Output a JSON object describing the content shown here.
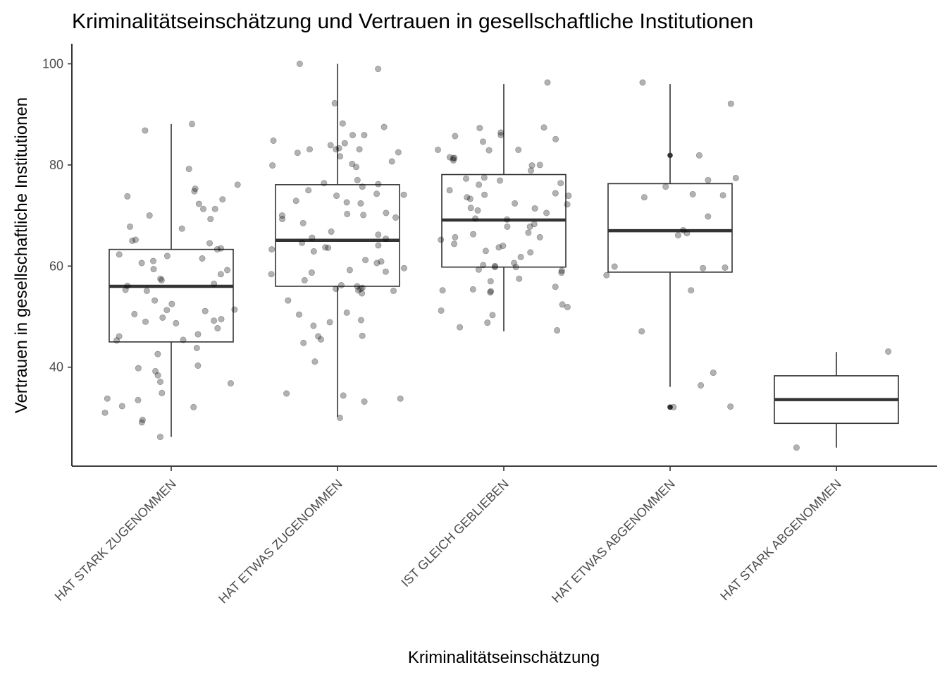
{
  "chart_data": {
    "type": "boxplot",
    "title": "Kriminalitätseinschätzung und Vertrauen in gesellschaftliche Institutionen",
    "xlabel": "Kriminalitätseinschätzung",
    "ylabel": "Vertrauen in gesellschaftliche Institutionen",
    "ylim": [
      21,
      104
    ],
    "y_ticks": [
      40,
      60,
      80,
      100
    ],
    "grid": false,
    "categories": [
      "HAT STARK ZUGENOMMEN",
      "HAT ETWAS ZUGENOMMEN",
      "IST GLEICH GEBLIEBEN",
      "HAT ETWAS ABGENOMMEN",
      "HAT STARK ABGENOMMEN"
    ],
    "boxes": [
      {
        "category": "HAT STARK ZUGENOMMEN",
        "whisker_low": 26.2,
        "q1": 45.0,
        "median": 56.0,
        "q3": 63.3,
        "whisker_high": 88.1,
        "outliers": []
      },
      {
        "category": "HAT ETWAS ZUGENOMMEN",
        "whisker_low": 30.2,
        "q1": 56.0,
        "median": 65.1,
        "q3": 76.1,
        "whisker_high": 100.0,
        "outliers": []
      },
      {
        "category": "IST GLEICH GEBLIEBEN",
        "whisker_low": 47.1,
        "q1": 59.8,
        "median": 69.1,
        "q3": 78.1,
        "whisker_high": 96.0,
        "outliers": []
      },
      {
        "category": "HAT ETWAS ABGENOMMEN",
        "whisker_low": 36.1,
        "q1": 58.8,
        "median": 67.0,
        "q3": 76.3,
        "whisker_high": 96.0,
        "outliers": [
          32.1,
          81.9
        ]
      },
      {
        "category": "HAT STARK ABGENOMMEN",
        "whisker_low": 24.1,
        "q1": 28.9,
        "median": 33.6,
        "q3": 38.3,
        "whisker_high": 43.0,
        "outliers": []
      }
    ],
    "jitter_points": [
      {
        "category": "HAT STARK ZUGENOMMEN",
        "values": [
          88.1,
          86.8,
          79.2,
          76.1,
          75.3,
          74.8,
          73.8,
          73.2,
          72.3,
          71.3,
          71.3,
          70.0,
          69.3,
          67.8,
          67.4,
          65.2,
          65.0,
          64.5,
          63.5,
          63.3,
          62.3,
          62.0,
          61.5,
          61.0,
          60.6,
          59.4,
          59.2,
          58.4,
          57.5,
          57.2,
          56.5,
          56.1,
          55.3,
          55.1,
          53.2,
          52.5,
          51.4,
          51.3,
          51.1,
          50.5,
          49.8,
          49.5,
          49.2,
          49.0,
          48.7,
          47.7,
          46.5,
          46.1,
          45.4,
          45.3,
          43.8,
          42.6,
          40.3,
          39.8,
          39.2,
          38.4,
          37.1,
          36.8,
          34.9,
          33.8,
          33.5,
          32.3,
          32.1,
          31.0,
          29.6,
          29.1,
          26.2
        ]
      },
      {
        "category": "HAT ETWAS ZUGENOMMEN",
        "values": [
          100.0,
          99.0,
          92.2,
          88.2,
          87.5,
          85.9,
          85.9,
          84.8,
          84.3,
          83.9,
          83.3,
          83.1,
          83.1,
          83.1,
          82.5,
          82.4,
          81.7,
          80.7,
          80.2,
          79.9,
          79.6,
          77.0,
          76.4,
          76.2,
          75.7,
          75.0,
          74.3,
          74.1,
          73.9,
          72.9,
          72.6,
          72.4,
          70.5,
          70.3,
          70.1,
          70.0,
          69.6,
          69.3,
          68.5,
          66.8,
          66.2,
          65.6,
          65.4,
          64.6,
          64.1,
          63.7,
          63.6,
          63.3,
          62.9,
          61.2,
          60.9,
          60.6,
          59.6,
          59.2,
          58.9,
          58.7,
          58.4,
          57.2,
          56.2,
          56.0,
          55.7,
          55.5,
          55.5,
          55.2,
          55.1,
          54.6,
          53.2,
          50.8,
          50.4,
          49.3,
          48.9,
          48.2,
          46.2,
          46.1,
          45.5,
          44.8,
          41.1,
          34.8,
          34.4,
          33.8,
          33.2,
          30.0
        ]
      },
      {
        "category": "IST GLEICH GEBLIEBEN",
        "values": [
          96.3,
          87.4,
          87.3,
          86.4,
          85.9,
          85.7,
          85.1,
          84.6,
          83.0,
          83.0,
          82.9,
          81.5,
          81.4,
          81.3,
          80.9,
          80.0,
          79.9,
          78.9,
          77.5,
          77.3,
          76.9,
          76.4,
          76.1,
          75.0,
          74.4,
          74.1,
          73.9,
          73.6,
          73.3,
          72.4,
          72.2,
          71.5,
          71.4,
          71.0,
          70.5,
          69.4,
          69.2,
          68.3,
          67.8,
          67.8,
          66.6,
          66.3,
          65.7,
          65.7,
          65.2,
          64.4,
          64.0,
          63.7,
          63.0,
          62.7,
          61.8,
          60.6,
          60.2,
          60.0,
          59.8,
          59.8,
          59.3,
          59.1,
          58.7,
          57.5,
          57.0,
          55.9,
          55.4,
          55.2,
          55.0,
          54.8,
          52.4,
          51.9,
          51.2,
          50.3,
          48.8,
          47.9,
          47.3
        ]
      },
      {
        "category": "HAT ETWAS ABGENOMMEN",
        "values": [
          96.3,
          92.1,
          81.9,
          77.4,
          77.0,
          75.7,
          74.2,
          74.0,
          73.6,
          69.8,
          67.1,
          66.5,
          66.1,
          59.9,
          59.7,
          59.6,
          58.2,
          55.2,
          47.1,
          38.9,
          36.4,
          32.2,
          32.1
        ]
      },
      {
        "category": "HAT STARK ABGENOMMEN",
        "values": [
          43.1,
          24.1
        ]
      }
    ]
  }
}
